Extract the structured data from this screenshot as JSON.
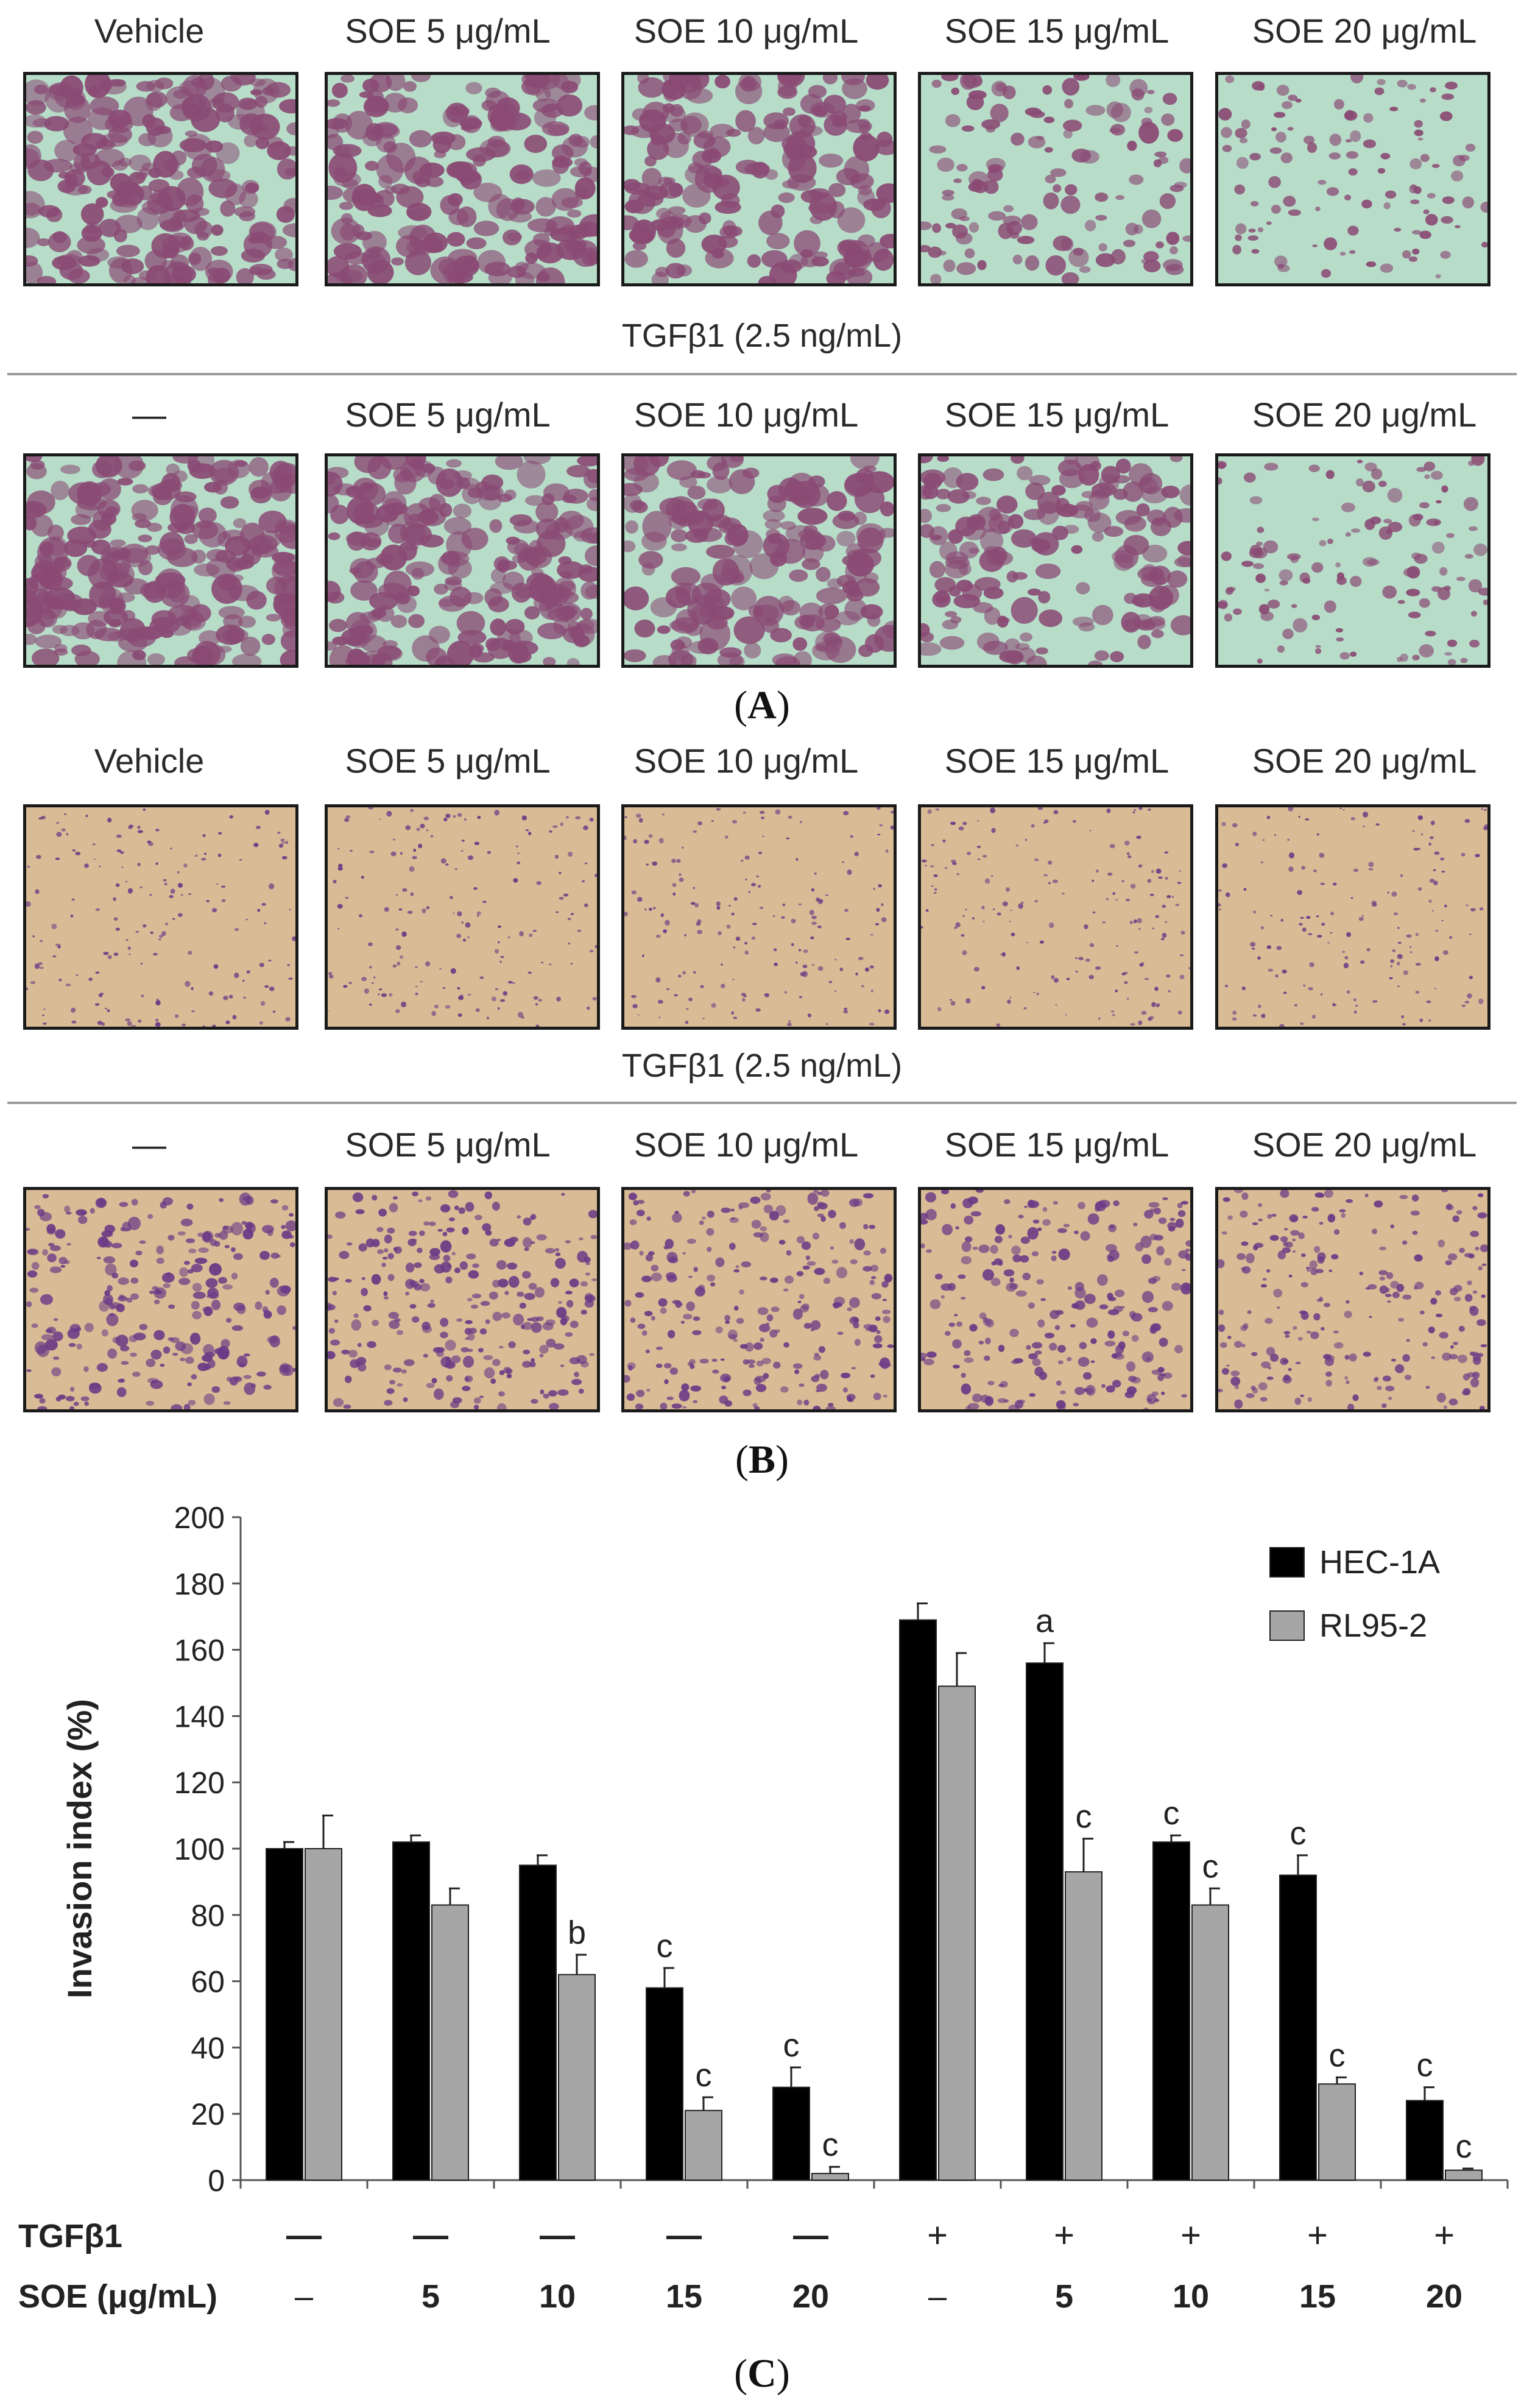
{
  "panel_a": {
    "letter": "A",
    "row1_labels": [
      "Vehicle",
      "SOE 5 μg/mL",
      "SOE 10 μg/mL",
      "SOE 15 μg/mL",
      "SOE 20 μg/mL"
    ],
    "treatment_label": "TGFβ1 (2.5 ng/mL)",
    "row2_labels": [
      "—",
      "SOE 5 μg/mL",
      "SOE 10 μg/mL",
      "SOE 15 μg/mL",
      "SOE 20 μg/mL"
    ],
    "background_color": "#b7ddc9",
    "stain_color": "#8a4a74"
  },
  "panel_b": {
    "letter": "B",
    "row1_labels": [
      "Vehicle",
      "SOE 5 μg/mL",
      "SOE 10 μg/mL",
      "SOE 15 μg/mL",
      "SOE 20 μg/mL"
    ],
    "treatment_label": "TGFβ1 (2.5 ng/mL)",
    "row2_labels": [
      "—",
      "SOE 5 μg/mL",
      "SOE 10 μg/mL",
      "SOE 15 μg/mL",
      "SOE 20 μg/mL"
    ],
    "background_color": "#d9bc95",
    "stain_color": "#6b3a86"
  },
  "panel_c": {
    "letter": "C"
  },
  "chart_data": {
    "type": "bar",
    "ylabel": "Invasion index (%)",
    "ylim": [
      0,
      200
    ],
    "yticks": [
      0,
      20,
      40,
      60,
      80,
      100,
      120,
      140,
      160,
      180,
      200
    ],
    "categories": [
      "1",
      "2",
      "3",
      "4",
      "5",
      "6",
      "7",
      "8",
      "9",
      "10"
    ],
    "row_labels": [
      "TGFβ1",
      "SOE (μg/mL)"
    ],
    "tgf_row": [
      "—",
      "—",
      "—",
      "—",
      "—",
      "+",
      "+",
      "+",
      "+",
      "+"
    ],
    "soe_row": [
      "–",
      "5",
      "10",
      "15",
      "20",
      "–",
      "5",
      "10",
      "15",
      "20"
    ],
    "series": [
      {
        "name": "HEC-1A",
        "color": "#000000",
        "values": [
          100,
          102,
          95,
          58,
          28,
          169,
          156,
          102,
          92,
          24
        ],
        "errors": [
          2,
          2,
          3,
          6,
          6,
          5,
          6,
          2,
          6,
          4
        ],
        "annotations": [
          "",
          "",
          "",
          "c",
          "c",
          "",
          "a",
          "c",
          "c",
          "c"
        ]
      },
      {
        "name": "RL95-2",
        "color": "#a6a6a6",
        "values": [
          100,
          83,
          62,
          21,
          2,
          149,
          93,
          83,
          29,
          3
        ],
        "errors": [
          10,
          5,
          6,
          4,
          2,
          10,
          10,
          5,
          2,
          0.5
        ],
        "annotations": [
          "",
          "",
          "b",
          "c",
          "c",
          "",
          "c",
          "c",
          "c",
          "c"
        ]
      }
    ],
    "legend_position": "top-right",
    "grid": false
  }
}
